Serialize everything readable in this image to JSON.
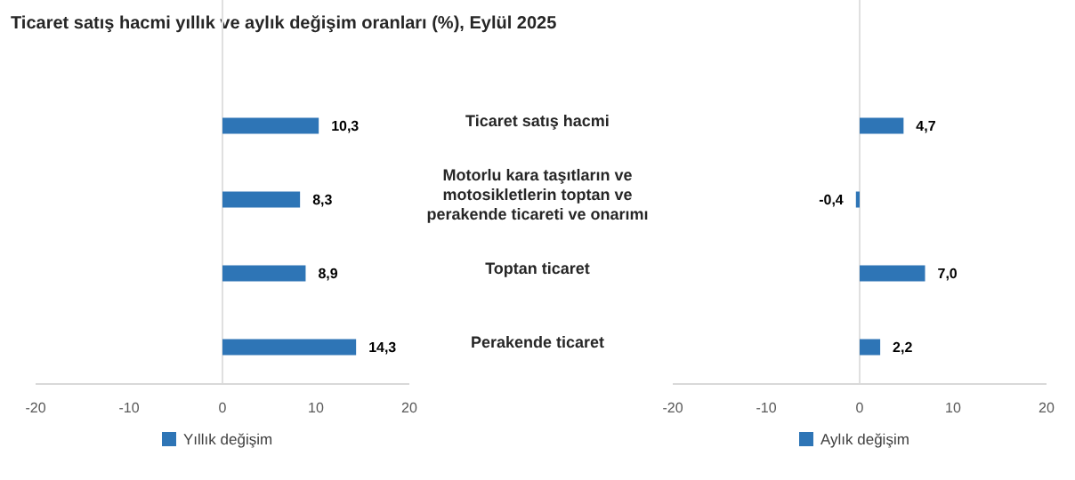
{
  "chart_data": [
    {
      "type": "bar",
      "orientation": "horizontal",
      "title": "Ticaret satış hacmi yıllık ve aylık değişim oranları (%), Eylül 2025",
      "categories": [
        "Ticaret satış hacmi",
        "Motorlu kara taşıtların ve motosikletlerin toptan ve perakende ticareti ve onarımı",
        "Toptan ticaret",
        "Perakende ticaret"
      ],
      "series": [
        {
          "name": "Yıllık değişim",
          "color": "#2e75b6",
          "values": [
            10.3,
            8.3,
            8.9,
            14.3
          ],
          "value_labels": [
            "10,3",
            "8,3",
            "8,9",
            "14,3"
          ]
        }
      ],
      "xlim": [
        -20,
        20
      ],
      "xticks": [
        -20,
        -10,
        0,
        10,
        20
      ],
      "grid": false,
      "legend": "bottom",
      "ref_lines": [
        {
          "axis": "x",
          "value": 0,
          "color": "#e0e0e0"
        }
      ]
    },
    {
      "type": "bar",
      "orientation": "horizontal",
      "categories": [
        null,
        null,
        null,
        null
      ],
      "series": [
        {
          "name": "Aylık değişim",
          "color": "#2e75b6",
          "values": [
            4.7,
            -0.4,
            7.0,
            2.2
          ],
          "value_labels": [
            "4,7",
            "-0,4",
            "7,0",
            "2,2"
          ]
        }
      ],
      "xlim": [
        -20,
        20
      ],
      "xticks": [
        -20,
        -10,
        0,
        10,
        20
      ],
      "grid": false,
      "legend": "bottom",
      "tick_labels": "x",
      "ref_lines": [
        {
          "axis": "x",
          "value": 0,
          "color": "#e0e0e0"
        }
      ]
    }
  ]
}
